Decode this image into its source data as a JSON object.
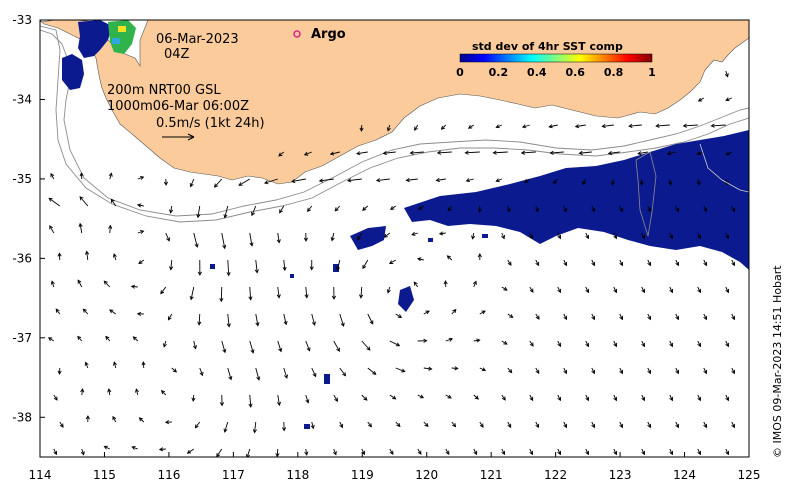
{
  "map": {
    "date_line": "06-Mar-2023",
    "time_line": "04Z",
    "legend_line1": "200m  NRT00 GSL",
    "legend_line2": "1000m06-Mar 06:00Z",
    "legend_line3": "0.5m/s (1kt 24h)",
    "argo_label": "Argo",
    "credit": "© IMOS 09-Mar-2023 14:51 Hobart"
  },
  "axes": {
    "x_ticks": [
      "114",
      "115",
      "116",
      "117",
      "118",
      "119",
      "120",
      "121",
      "122",
      "123",
      "124",
      "125"
    ],
    "y_ticks": [
      "-33",
      "-34",
      "-35",
      "-36",
      "-37",
      "-38"
    ],
    "xlim": [
      114,
      125
    ],
    "ylim": [
      -38.5,
      -33
    ]
  },
  "colorbar": {
    "title": "std dev of 4hr SST comp",
    "ticks": [
      "0",
      "0.2",
      "0.4",
      "0.6",
      "0.8",
      "1"
    ],
    "range": [
      0,
      1
    ]
  },
  "colors": {
    "land": "#fbcb9c",
    "ocean": "#ffffff",
    "sst_low": "#0a1a8c",
    "argo_marker": "#e0208c",
    "contour": "#9a9a9a"
  }
}
